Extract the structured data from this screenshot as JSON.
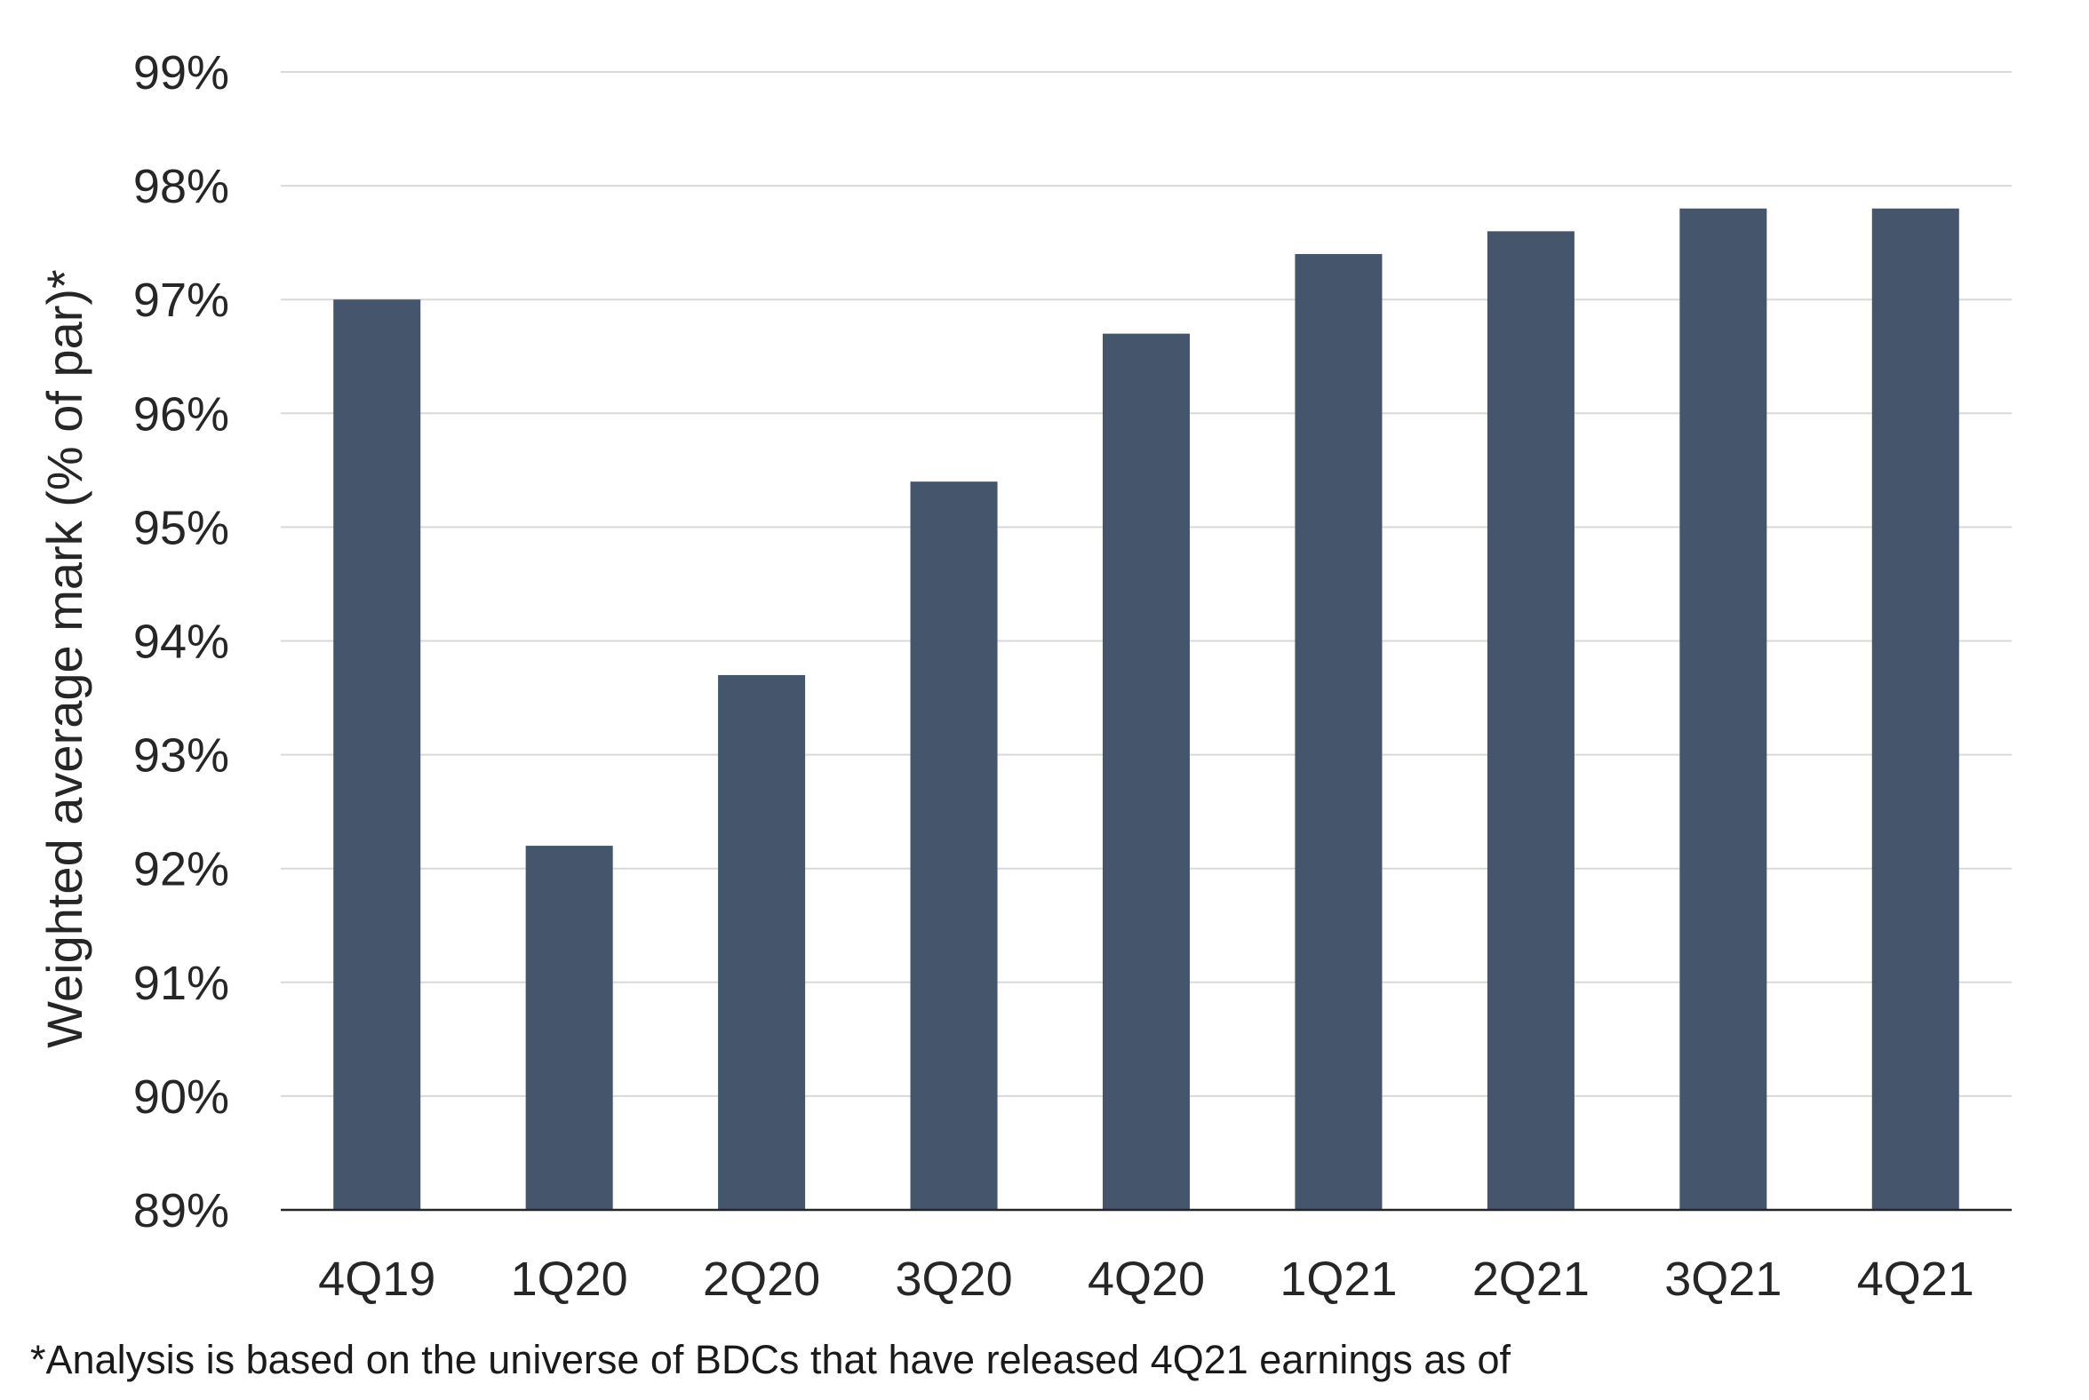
{
  "chart_data": {
    "type": "bar",
    "categories": [
      "4Q19",
      "1Q20",
      "2Q20",
      "3Q20",
      "4Q20",
      "1Q21",
      "2Q21",
      "3Q21",
      "4Q21"
    ],
    "values": [
      97.0,
      92.2,
      93.7,
      95.4,
      96.7,
      97.4,
      97.6,
      97.8,
      97.8
    ],
    "title": "",
    "xlabel": "",
    "ylabel": "Weighted average mark (% of par)*",
    "ylim": [
      89,
      99
    ],
    "y_ticks": [
      "89%",
      "90%",
      "91%",
      "92%",
      "93%",
      "94%",
      "95%",
      "96%",
      "97%",
      "98%",
      "99%"
    ],
    "grid": true,
    "bar_color": "#45556c",
    "gridline_color": "#d9d9d9",
    "axis_color": "#262626"
  },
  "footnote": "*Analysis is based on the universe of BDCs that have released 4Q21 earnings as of"
}
